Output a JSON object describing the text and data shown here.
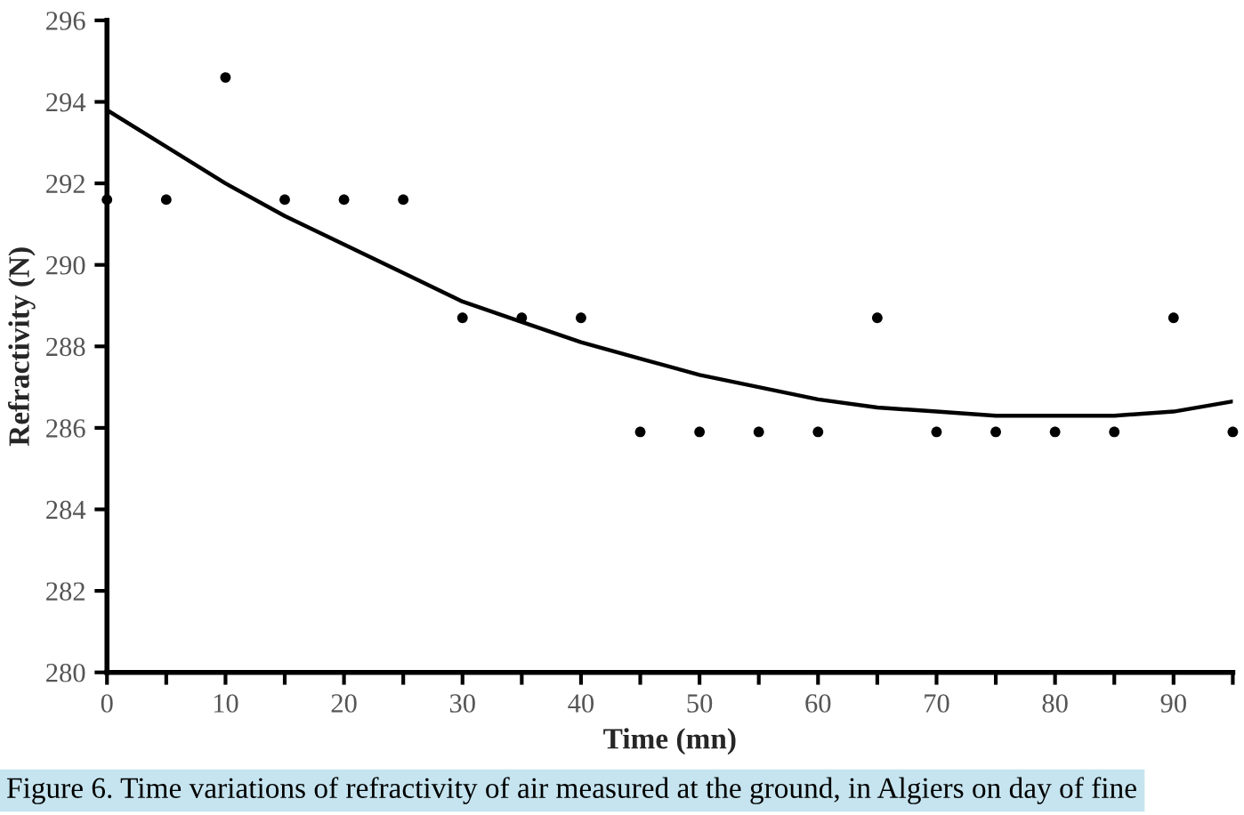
{
  "chart_data": {
    "type": "scatter",
    "xlabel": "Time (mn)",
    "ylabel": "Refractivity (N)",
    "x": [
      0,
      5,
      10,
      15,
      20,
      25,
      30,
      35,
      40,
      45,
      50,
      55,
      60,
      65,
      70,
      75,
      80,
      85,
      90,
      95
    ],
    "series": [
      {
        "color": "#000000",
        "marker": "circle",
        "values": [
          291.6,
          291.6,
          294.6,
          291.6,
          291.6,
          291.6,
          288.7,
          288.7,
          288.7,
          285.9,
          285.9,
          285.9,
          285.9,
          288.7,
          285.9,
          285.9,
          285.9,
          285.9,
          288.7,
          285.9
        ]
      },
      {
        "type": "line",
        "color": "#000000",
        "marker": "none",
        "line_style": "solid",
        "x": [
          0,
          5,
          10,
          15,
          20,
          25,
          30,
          35,
          40,
          45,
          50,
          55,
          60,
          65,
          70,
          75,
          80,
          85,
          90,
          95
        ],
        "values": [
          293.8,
          292.9,
          292.0,
          291.2,
          290.5,
          289.8,
          289.1,
          288.6,
          288.1,
          287.7,
          287.3,
          287.0,
          286.7,
          286.5,
          286.4,
          286.3,
          286.3,
          286.3,
          286.4,
          286.65
        ]
      }
    ],
    "xlim": [
      0,
      95
    ],
    "xticks": [
      0,
      {
        "value": 5,
        "label": null
      },
      10,
      {
        "value": 15,
        "label": null
      },
      20,
      {
        "value": 25,
        "label": null
      },
      30,
      {
        "value": 35,
        "label": null
      },
      40,
      {
        "value": 45,
        "label": null
      },
      50,
      {
        "value": 55,
        "label": null
      },
      60,
      {
        "value": 65,
        "label": null
      },
      70,
      {
        "value": 75,
        "label": null
      },
      80,
      {
        "value": 85,
        "label": null
      },
      90,
      {
        "value": 95,
        "label": null
      }
    ],
    "ylim": [
      280,
      296
    ],
    "yticks": [
      280,
      282,
      284,
      286,
      288,
      290,
      292,
      294,
      296
    ],
    "grid": false,
    "legend": false,
    "annotations": [
      "Figure 6. Time variations of refractivity of air measured at the ground, in Algiers on day of fine"
    ]
  }
}
